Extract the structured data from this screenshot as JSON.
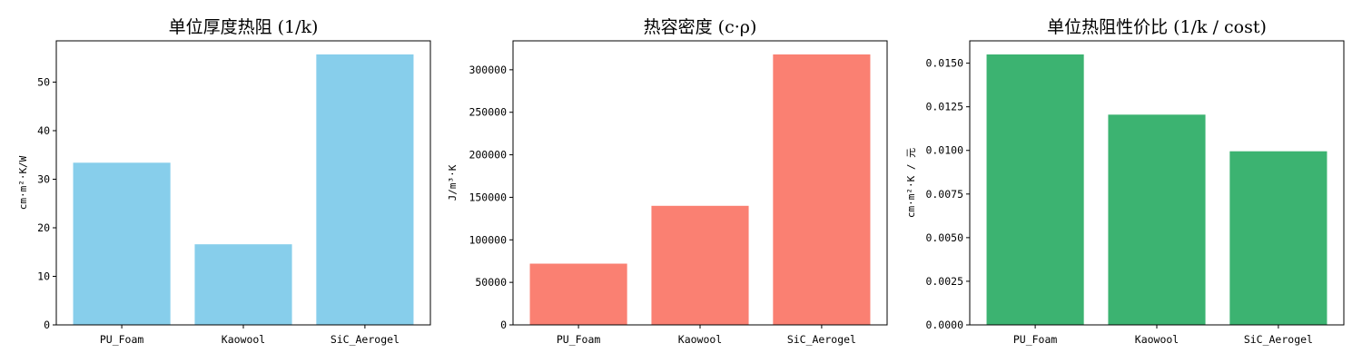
{
  "chart_data": [
    {
      "type": "bar",
      "title": "单位厚度热阻 (1/k)",
      "xlabel": "",
      "ylabel": "cm·m²·K/W",
      "categories": [
        "PU_Foam",
        "Kaowool",
        "SiC_Aerogel"
      ],
      "values": [
        33.4,
        16.6,
        55.7
      ],
      "ylim": [
        0,
        58.5
      ],
      "yticks": [
        0,
        10,
        20,
        30,
        40,
        50
      ],
      "ytick_labels": [
        "0",
        "10",
        "20",
        "30",
        "40",
        "50"
      ],
      "color": "#87CEEB",
      "grid": false
    },
    {
      "type": "bar",
      "title": "热容密度 (c·ρ)",
      "xlabel": "",
      "ylabel": "J/m³·K",
      "categories": [
        "PU_Foam",
        "Kaowool",
        "SiC_Aerogel"
      ],
      "values": [
        72000,
        140000,
        318000
      ],
      "ylim": [
        0,
        334000
      ],
      "yticks": [
        0,
        50000,
        100000,
        150000,
        200000,
        250000,
        300000
      ],
      "ytick_labels": [
        "0",
        "50000",
        "100000",
        "150000",
        "200000",
        "250000",
        "300000"
      ],
      "color": "#FA8072",
      "grid": false
    },
    {
      "type": "bar",
      "title": "单位热阻性价比 (1/k / cost)",
      "xlabel": "",
      "ylabel": "cm·m²·K / 元",
      "categories": [
        "PU_Foam",
        "Kaowool",
        "SiC_Aerogel"
      ],
      "values": [
        0.0155,
        0.01205,
        0.00995
      ],
      "ylim": [
        0,
        0.01628
      ],
      "yticks": [
        0,
        0.0025,
        0.005,
        0.0075,
        0.01,
        0.0125,
        0.015
      ],
      "ytick_labels": [
        "0.0000",
        "0.0025",
        "0.0050",
        "0.0075",
        "0.0100",
        "0.0125",
        "0.0150"
      ],
      "color": "#3CB371",
      "grid": false
    }
  ]
}
